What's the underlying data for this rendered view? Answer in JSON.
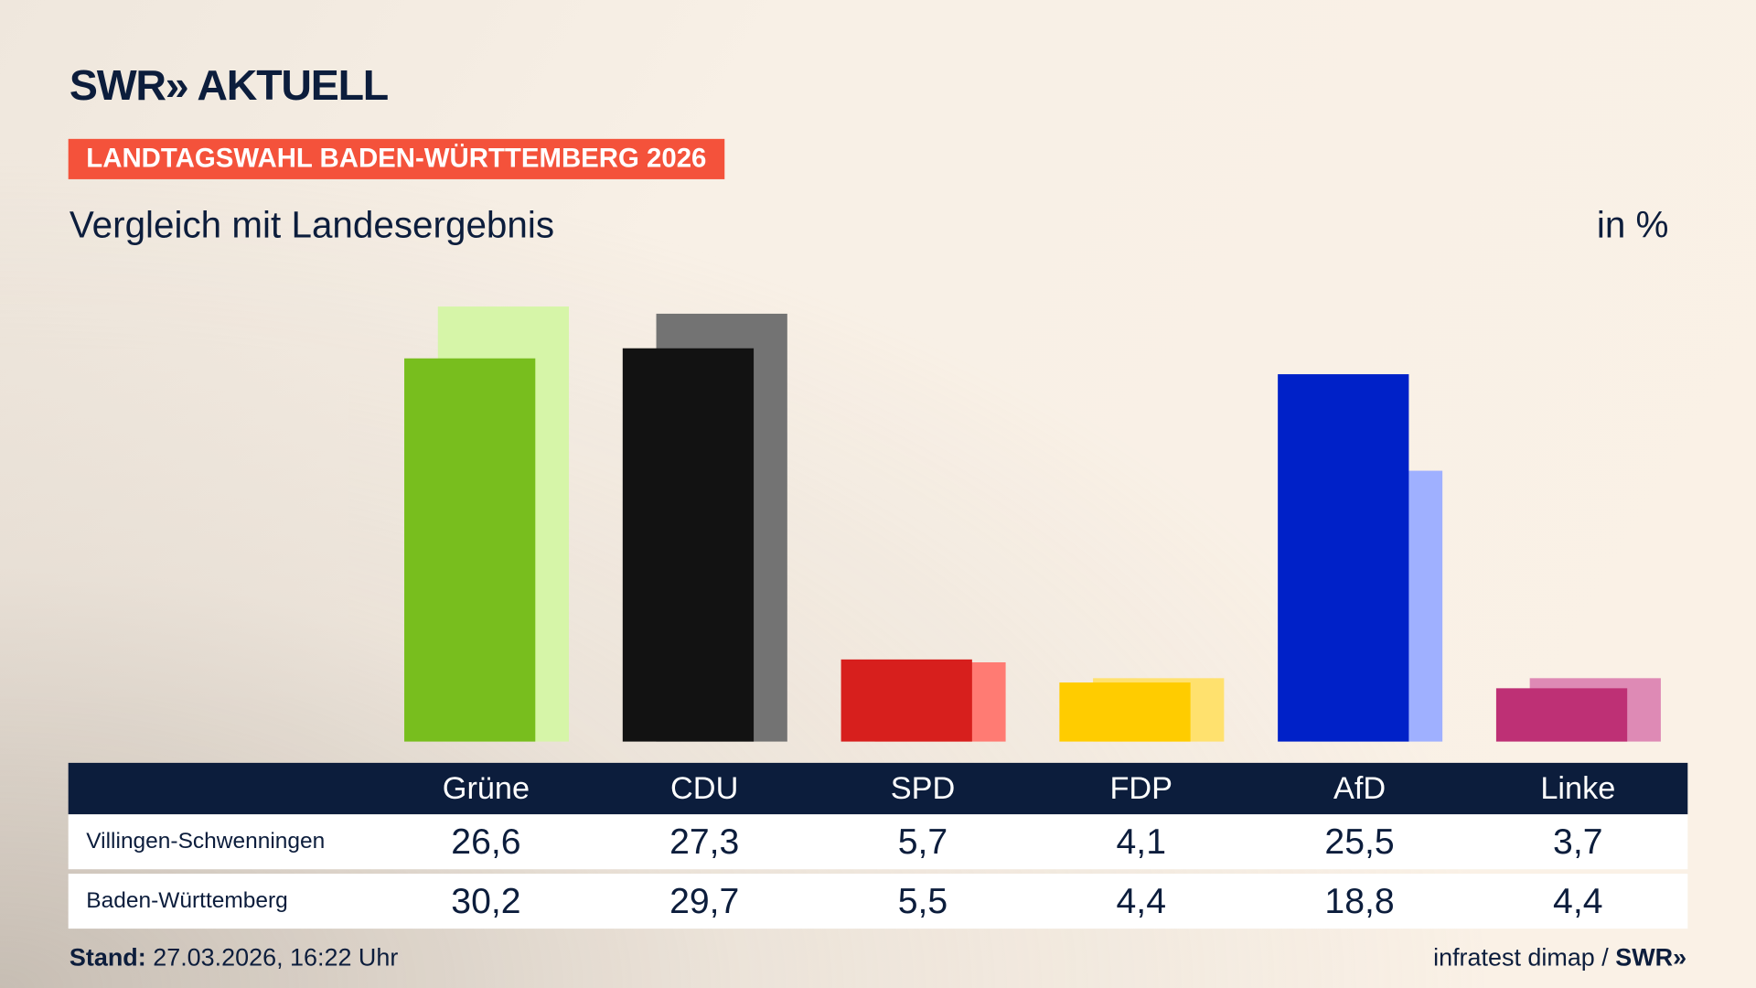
{
  "header": {
    "logo": "SWR» AKTUELL",
    "badge": "LANDTAGSWAHL BADEN-WÜRTTEMBERG 2026",
    "subtitle": "Vergleich mit Landesergebnis",
    "unit": "in %"
  },
  "chart_data": {
    "type": "bar",
    "categories": [
      "Grüne",
      "CDU",
      "SPD",
      "FDP",
      "AfD",
      "Linke"
    ],
    "series": [
      {
        "name": "Villingen-Schwenningen",
        "values": [
          26.6,
          27.3,
          5.7,
          4.1,
          25.5,
          3.7
        ],
        "display": [
          "26,6",
          "27,3",
          "5,7",
          "4,1",
          "25,5",
          "3,7"
        ]
      },
      {
        "name": "Baden-Württemberg",
        "values": [
          30.2,
          29.7,
          5.5,
          4.4,
          18.8,
          4.4
        ],
        "display": [
          "30,2",
          "29,7",
          "5,5",
          "4,4",
          "18,8",
          "4,4"
        ]
      }
    ],
    "colors": {
      "primary": [
        "#78be1e",
        "#121212",
        "#d71f1d",
        "#ffcc00",
        "#0021c8",
        "#be3075"
      ],
      "secondary": [
        "#d6f5a8",
        "#737373",
        "#ff7b73",
        "#ffe16e",
        "#9fb0ff",
        "#de8ab5"
      ]
    },
    "ylim": [
      0,
      30.2
    ],
    "grid": false
  },
  "footer": {
    "stand_label": "Stand:",
    "stand_value": "27.03.2026, 16:22 Uhr",
    "source": "infratest dimap / ",
    "source_logo": "SWR»"
  }
}
